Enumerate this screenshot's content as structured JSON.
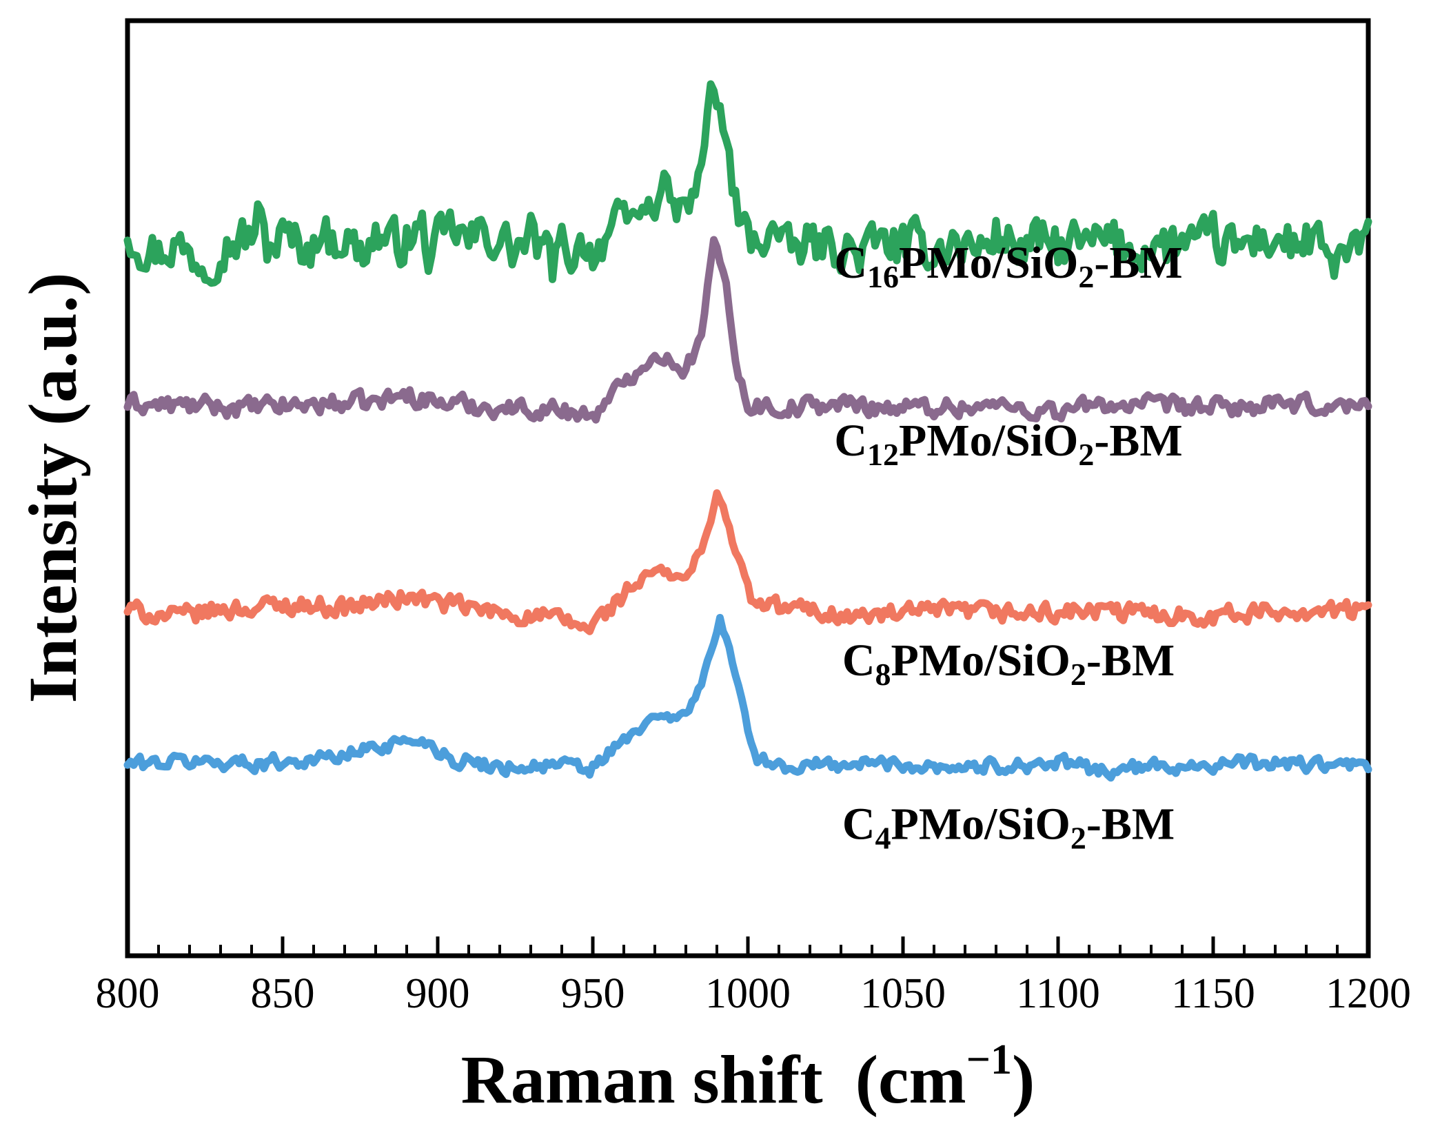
{
  "chart_data": {
    "type": "line",
    "xlabel": "Raman shift",
    "xlabel_unit_open": "(cm",
    "xlabel_unit_sup": "−1",
    "xlabel_unit_close": ")",
    "ylabel": "Intensity (a.u.)",
    "xlim": [
      800,
      1200
    ],
    "ylim": [
      0,
      100
    ],
    "xticks": [
      "800",
      "850",
      "900",
      "950",
      "1000",
      "1050",
      "1100",
      "1150",
      "1200"
    ],
    "yticks_shown": false,
    "grid": false,
    "offset_stacked": true,
    "series": [
      {
        "name": "C16PMo/SiO2-BM",
        "label_parts": {
          "c": "C",
          "n": "16",
          "mid": "PMo/SiO",
          "two": "2",
          "tail": "-BM"
        },
        "color": "#2ca35c",
        "peaks": [
          [
            988,
            17
          ],
          [
            973,
            6
          ],
          [
            966,
            3
          ],
          [
            1008,
            1.5
          ]
        ],
        "noise": 2.2,
        "values": [
          [
            800,
            77.5
          ],
          [
            805,
            76.0
          ],
          [
            810,
            75.2
          ],
          [
            815,
            76.2
          ],
          [
            820,
            75.0
          ],
          [
            825,
            74.3
          ],
          [
            830,
            75.8
          ],
          [
            835,
            76.5
          ],
          [
            840,
            77.0
          ],
          [
            842,
            79.0
          ],
          [
            845,
            75.8
          ],
          [
            850,
            76.9
          ],
          [
            855,
            76.2
          ],
          [
            860,
            75.6
          ],
          [
            862,
            78.5
          ],
          [
            865,
            76.3
          ],
          [
            870,
            77.0
          ],
          [
            875,
            75.0
          ],
          [
            880,
            77.2
          ],
          [
            885,
            76.0
          ],
          [
            890,
            76.6
          ],
          [
            895,
            77.5
          ],
          [
            898,
            74.5
          ],
          [
            900,
            76.0
          ],
          [
            905,
            77.8
          ],
          [
            910,
            76.2
          ],
          [
            915,
            77.4
          ],
          [
            920,
            76.5
          ],
          [
            925,
            75.4
          ],
          [
            930,
            76.8
          ],
          [
            935,
            75.0
          ],
          [
            937,
            73.6
          ],
          [
            940,
            75.8
          ],
          [
            945,
            75.2
          ],
          [
            948,
            77.0
          ],
          [
            950,
            74.8
          ],
          [
            955,
            77.6
          ],
          [
            960,
            78.0
          ],
          [
            965,
            79.6
          ],
          [
            970,
            80.4
          ],
          [
            973,
            83.0
          ],
          [
            976,
            79.8
          ],
          [
            980,
            79.6
          ],
          [
            985,
            83.5
          ],
          [
            988,
            93.5
          ],
          [
            991,
            90.0
          ],
          [
            994,
            85.0
          ],
          [
            997,
            78.5
          ],
          [
            1000,
            76.8
          ],
          [
            1005,
            76.2
          ],
          [
            1008,
            78.0
          ],
          [
            1012,
            76.0
          ],
          [
            1015,
            75.4
          ],
          [
            1020,
            76.2
          ],
          [
            1025,
            75.8
          ],
          [
            1030,
            76.0
          ],
          [
            1035,
            75.0
          ],
          [
            1040,
            75.8
          ],
          [
            1045,
            76.4
          ],
          [
            1050,
            75.6
          ],
          [
            1055,
            76.0
          ],
          [
            1060,
            75.5
          ],
          [
            1065,
            76.3
          ],
          [
            1070,
            76.0
          ],
          [
            1075,
            75.5
          ],
          [
            1080,
            77.2
          ],
          [
            1085,
            76.0
          ],
          [
            1090,
            75.8
          ],
          [
            1095,
            76.4
          ],
          [
            1100,
            75.6
          ],
          [
            1105,
            76.2
          ],
          [
            1110,
            75.8
          ],
          [
            1115,
            76.6
          ],
          [
            1120,
            76.0
          ],
          [
            1125,
            75.4
          ],
          [
            1130,
            76.2
          ],
          [
            1135,
            75.8
          ],
          [
            1140,
            76.4
          ],
          [
            1145,
            75.6
          ],
          [
            1150,
            76.8
          ],
          [
            1155,
            75.6
          ],
          [
            1160,
            76.0
          ],
          [
            1165,
            76.6
          ],
          [
            1170,
            76.8
          ],
          [
            1175,
            76.0
          ],
          [
            1180,
            76.4
          ],
          [
            1185,
            75.5
          ],
          [
            1188,
            73.4
          ],
          [
            1190,
            74.6
          ],
          [
            1195,
            75.4
          ],
          [
            1200,
            76.0
          ]
        ]
      },
      {
        "name": "C12PMo/SiO2-BM",
        "label_parts": {
          "c": "C",
          "n": "12",
          "mid": "PMo/SiO",
          "two": "2",
          "tail": "-BM"
        },
        "color": "#8a6a8e",
        "peaks": [
          [
            989,
            18.5
          ],
          [
            970,
            5.5
          ]
        ],
        "noise": 0.9,
        "values": [
          [
            800,
            59.0
          ],
          [
            820,
            58.8
          ],
          [
            840,
            58.6
          ],
          [
            860,
            59.0
          ],
          [
            880,
            59.2
          ],
          [
            890,
            60.0
          ],
          [
            900,
            59.2
          ],
          [
            920,
            58.6
          ],
          [
            940,
            58.4
          ],
          [
            949,
            57.8
          ],
          [
            955,
            59.0
          ],
          [
            960,
            61.5
          ],
          [
            965,
            63.0
          ],
          [
            970,
            64.0
          ],
          [
            975,
            63.8
          ],
          [
            980,
            62.8
          ],
          [
            985,
            66.0
          ],
          [
            989,
            76.5
          ],
          [
            993,
            72.0
          ],
          [
            997,
            62.0
          ],
          [
            1000,
            59.0
          ],
          [
            1010,
            58.6
          ],
          [
            1030,
            59.0
          ],
          [
            1050,
            58.6
          ],
          [
            1080,
            58.8
          ],
          [
            1100,
            58.2
          ],
          [
            1115,
            59.0
          ],
          [
            1130,
            58.8
          ],
          [
            1150,
            58.6
          ],
          [
            1170,
            58.8
          ],
          [
            1200,
            58.8
          ]
        ]
      },
      {
        "name": "C8PMo/SiO2-BM",
        "label_parts": {
          "c": "C",
          "n": "8",
          "mid": "PMo/SiO",
          "two": "2",
          "tail": "-BM"
        },
        "color": "#f07860",
        "peaks": [
          [
            990,
            12.5
          ],
          [
            969,
            4.2
          ],
          [
            977,
            3.2
          ]
        ],
        "noise": 0.9,
        "values": [
          [
            800,
            37.0
          ],
          [
            815,
            36.2
          ],
          [
            830,
            37.0
          ],
          [
            855,
            37.6
          ],
          [
            870,
            37.2
          ],
          [
            890,
            38.4
          ],
          [
            900,
            37.8
          ],
          [
            920,
            36.6
          ],
          [
            935,
            36.2
          ],
          [
            949,
            35.0
          ],
          [
            955,
            37.0
          ],
          [
            960,
            38.6
          ],
          [
            965,
            40.0
          ],
          [
            970,
            41.2
          ],
          [
            975,
            40.6
          ],
          [
            980,
            40.4
          ],
          [
            985,
            43.0
          ],
          [
            990,
            49.5
          ],
          [
            994,
            46.0
          ],
          [
            998,
            41.0
          ],
          [
            1002,
            37.5
          ],
          [
            1020,
            37.0
          ],
          [
            1035,
            36.2
          ],
          [
            1060,
            36.8
          ],
          [
            1090,
            36.6
          ],
          [
            1110,
            36.8
          ],
          [
            1150,
            36.4
          ],
          [
            1180,
            37.0
          ],
          [
            1200,
            36.8
          ]
        ]
      },
      {
        "name": "C4PMo/SiO2-BM",
        "label_parts": {
          "c": "C",
          "n": "4",
          "mid": "PMo/SiO",
          "two": "2",
          "tail": "-BM"
        },
        "color": "#4c9edb",
        "peaks": [
          [
            991,
            15
          ],
          [
            969,
            4.2
          ],
          [
            977,
            3.0
          ],
          [
            892,
            2.6
          ]
        ],
        "noise": 0.7,
        "values": [
          [
            800,
            20.5
          ],
          [
            820,
            20.8
          ],
          [
            840,
            20.6
          ],
          [
            860,
            21.0
          ],
          [
            870,
            21.4
          ],
          [
            880,
            22.4
          ],
          [
            890,
            23.0
          ],
          [
            897,
            22.8
          ],
          [
            905,
            21.0
          ],
          [
            920,
            20.2
          ],
          [
            940,
            20.4
          ],
          [
            949,
            19.8
          ],
          [
            955,
            21.6
          ],
          [
            960,
            22.8
          ],
          [
            965,
            24.2
          ],
          [
            970,
            25.6
          ],
          [
            975,
            25.4
          ],
          [
            980,
            25.8
          ],
          [
            985,
            29.0
          ],
          [
            991,
            36.0
          ],
          [
            995,
            31.5
          ],
          [
            999,
            25.0
          ],
          [
            1003,
            21.5
          ],
          [
            1010,
            20.2
          ],
          [
            1040,
            20.6
          ],
          [
            1070,
            20.2
          ],
          [
            1100,
            20.6
          ],
          [
            1115,
            19.8
          ],
          [
            1140,
            20.4
          ],
          [
            1170,
            20.6
          ],
          [
            1200,
            20.2
          ]
        ]
      }
    ]
  }
}
